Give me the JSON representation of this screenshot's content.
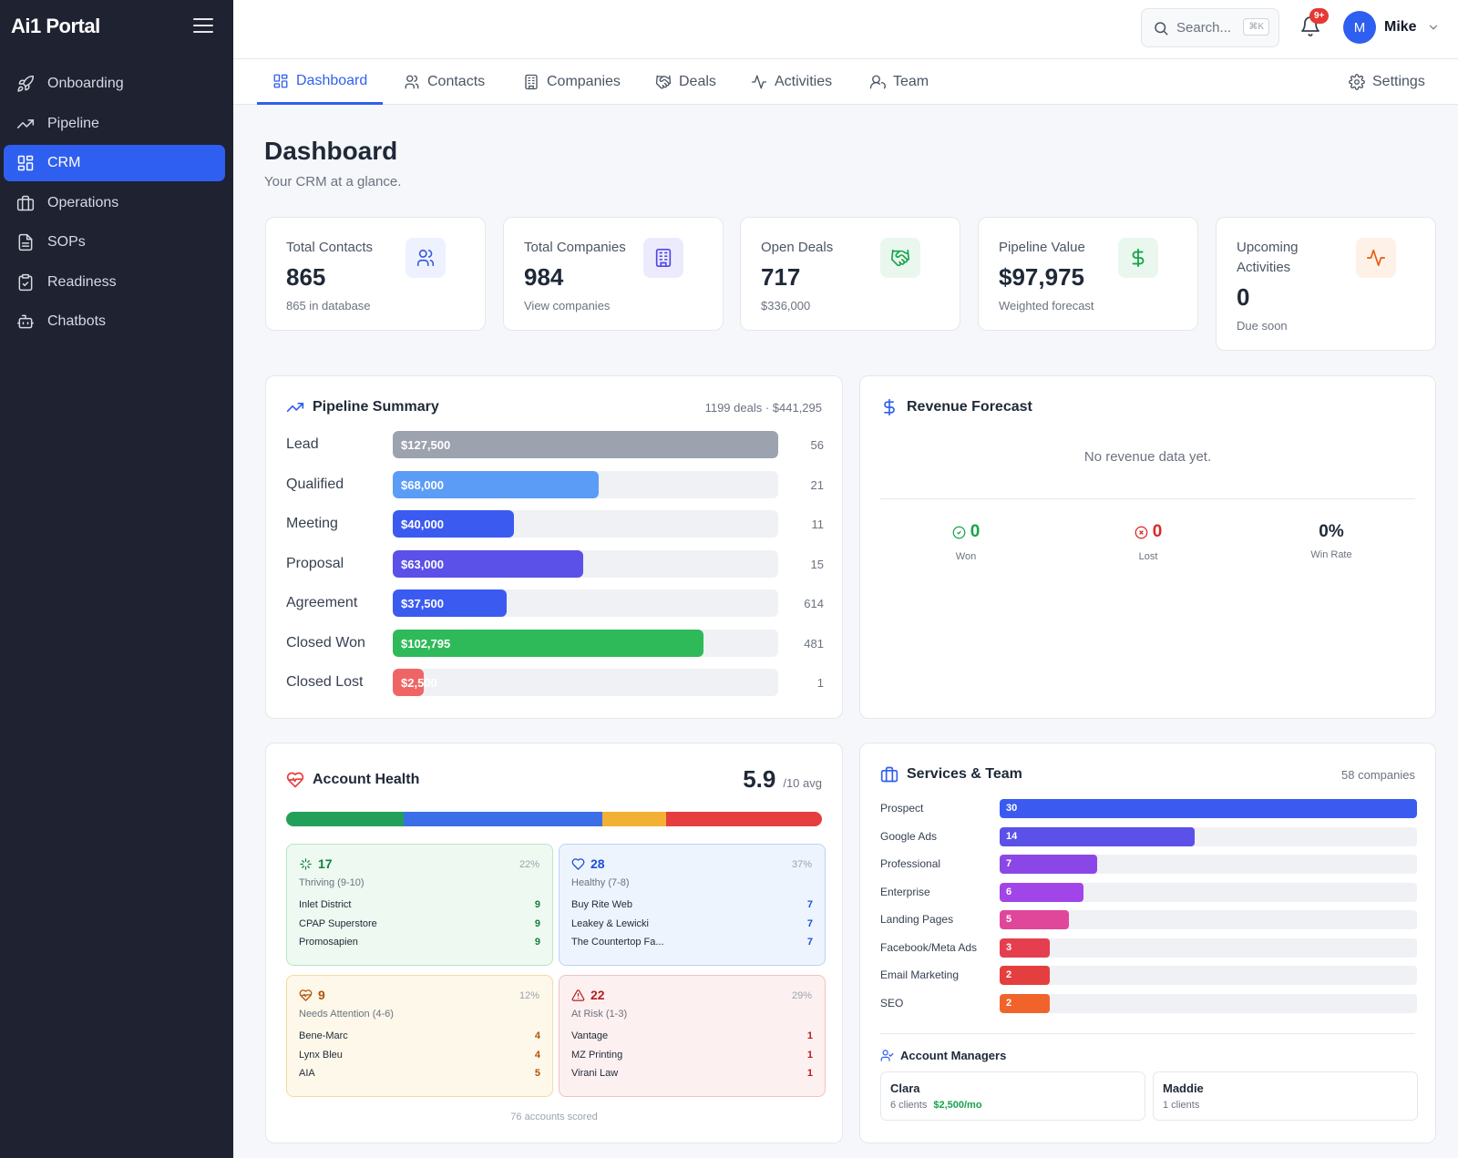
{
  "brand": "Ai1 Portal",
  "sidebar": {
    "items": [
      {
        "label": "Onboarding",
        "icon": "rocket-icon"
      },
      {
        "label": "Pipeline",
        "icon": "trending-up-icon"
      },
      {
        "label": "CRM",
        "icon": "grid-icon",
        "active": true
      },
      {
        "label": "Operations",
        "icon": "briefcase-icon"
      },
      {
        "label": "SOPs",
        "icon": "document-icon"
      },
      {
        "label": "Readiness",
        "icon": "clipboard-check-icon"
      },
      {
        "label": "Chatbots",
        "icon": "bot-icon"
      }
    ]
  },
  "topbar": {
    "search_placeholder": "Search...",
    "search_shortcut": "⌘K",
    "notification_badge": "9+",
    "avatar_initial": "M",
    "user_name": "Mike"
  },
  "tabs": [
    {
      "label": "Dashboard",
      "active": true
    },
    {
      "label": "Contacts"
    },
    {
      "label": "Companies"
    },
    {
      "label": "Deals"
    },
    {
      "label": "Activities"
    },
    {
      "label": "Team"
    }
  ],
  "settings_label": "Settings",
  "page": {
    "title": "Dashboard",
    "subtitle": "Your CRM at a glance."
  },
  "stats": [
    {
      "label": "Total Contacts",
      "value": "865",
      "sub": "865 in database",
      "icon": "users-icon",
      "color": "#3b5bdb"
    },
    {
      "label": "Total Companies",
      "value": "984",
      "sub": "View companies",
      "icon": "building-icon",
      "color": "#4f46e5"
    },
    {
      "label": "Open Deals",
      "value": "717",
      "sub": "$336,000",
      "icon": "handshake-icon",
      "color": "#16a34a"
    },
    {
      "label": "Pipeline Value",
      "value": "$97,975",
      "sub": "Weighted forecast",
      "icon": "dollar-icon",
      "color": "#16a34a"
    },
    {
      "label": "Upcoming Activities",
      "value": "0",
      "sub": "Due soon",
      "icon": "activity-icon",
      "color": "#ea580c"
    }
  ],
  "pipeline": {
    "title": "Pipeline Summary",
    "meta": "1199 deals · $441,295",
    "stages": [
      {
        "label": "Lead",
        "amount": "$127,500",
        "count": "56",
        "fraction": 1.0,
        "color": "#9ca3af"
      },
      {
        "label": "Qualified",
        "amount": "$68,000",
        "count": "21",
        "fraction": 0.535,
        "color": "#5b9cf6"
      },
      {
        "label": "Meeting",
        "amount": "$40,000",
        "count": "11",
        "fraction": 0.315,
        "color": "#3b5bf0"
      },
      {
        "label": "Proposal",
        "amount": "$63,000",
        "count": "15",
        "fraction": 0.495,
        "color": "#5b50e8"
      },
      {
        "label": "Agreement",
        "amount": "$37,500",
        "count": "614",
        "fraction": 0.295,
        "color": "#3b5bf0"
      },
      {
        "label": "Closed Won",
        "amount": "$102,795",
        "count": "481",
        "fraction": 0.806,
        "color": "#2fba5a"
      },
      {
        "label": "Closed Lost",
        "amount": "$2,500",
        "count": "1",
        "fraction": 0.08,
        "color": "#ef6565"
      }
    ]
  },
  "revenue": {
    "title": "Revenue Forecast",
    "empty": "No revenue data yet.",
    "won_value": "0",
    "won_label": "Won",
    "lost_value": "0",
    "lost_label": "Lost",
    "winrate_value": "0%",
    "winrate_label": "Win Rate"
  },
  "health": {
    "title": "Account Health",
    "score": "5.9",
    "score_suffix": "/10 avg",
    "distribution": [
      {
        "fraction": 0.22,
        "color": "#22a05a"
      },
      {
        "fraction": 0.37,
        "color": "#3b6fe8"
      },
      {
        "fraction": 0.12,
        "color": "#f2b134"
      },
      {
        "fraction": 0.29,
        "color": "#e53e3e"
      }
    ],
    "groups": [
      {
        "count": "17",
        "pct": "22%",
        "label": "Thriving (9-10)",
        "icon": "sparkle-icon",
        "color": "#15803d",
        "bg": "#edf9f1",
        "border": "#b6e6c7",
        "items": [
          {
            "name": "Inlet District",
            "score": "9"
          },
          {
            "name": "CPAP Superstore",
            "score": "9"
          },
          {
            "name": "Promosapien",
            "score": "9"
          }
        ]
      },
      {
        "count": "28",
        "pct": "37%",
        "label": "Healthy (7-8)",
        "icon": "heart-icon",
        "color": "#1d4ed8",
        "bg": "#eef4fd",
        "border": "#bcd2f4",
        "items": [
          {
            "name": "Buy Rite Web",
            "score": "7"
          },
          {
            "name": "Leakey & Lewicki",
            "score": "7"
          },
          {
            "name": "The Countertop Fa...",
            "score": "7"
          }
        ]
      },
      {
        "count": "9",
        "pct": "12%",
        "label": "Needs Attention (4-6)",
        "icon": "heart-pulse-icon",
        "color": "#b45309",
        "bg": "#fdf8e9",
        "border": "#f1dca0",
        "items": [
          {
            "name": "Bene-Marc",
            "score": "4"
          },
          {
            "name": "Lynx Bleu",
            "score": "4"
          },
          {
            "name": "AIA",
            "score": "5"
          }
        ]
      },
      {
        "count": "22",
        "pct": "29%",
        "label": "At Risk (1-3)",
        "icon": "warning-icon",
        "color": "#b91c1c",
        "bg": "#fdf0f0",
        "border": "#f2c1c1",
        "items": [
          {
            "name": "Vantage",
            "score": "1"
          },
          {
            "name": "MZ Printing",
            "score": "1"
          },
          {
            "name": "Virani Law",
            "score": "1"
          }
        ]
      }
    ],
    "footer": "76 accounts scored"
  },
  "services": {
    "title": "Services & Team",
    "meta": "58 companies",
    "items": [
      {
        "label": "Prospect",
        "value": "30",
        "fraction": 1.0,
        "color": "#3b5bf0"
      },
      {
        "label": "Google Ads",
        "value": "14",
        "fraction": 0.467,
        "color": "#5b50e8"
      },
      {
        "label": "Professional",
        "value": "7",
        "fraction": 0.233,
        "color": "#8b47e6"
      },
      {
        "label": "Enterprise",
        "value": "6",
        "fraction": 0.2,
        "color": "#a145e8"
      },
      {
        "label": "Landing Pages",
        "value": "5",
        "fraction": 0.167,
        "color": "#e0479a"
      },
      {
        "label": "Facebook/Meta Ads",
        "value": "3",
        "fraction": 0.12,
        "color": "#e53e4f"
      },
      {
        "label": "Email Marketing",
        "value": "2",
        "fraction": 0.12,
        "color": "#e53e3e"
      },
      {
        "label": "SEO",
        "value": "2",
        "fraction": 0.12,
        "color": "#f0642c"
      }
    ],
    "managers_title": "Account Managers",
    "managers": [
      {
        "name": "Clara",
        "clients": "6 clients",
        "revenue": "$2,500/mo"
      },
      {
        "name": "Maddie",
        "clients": "1 clients",
        "revenue": ""
      }
    ]
  }
}
